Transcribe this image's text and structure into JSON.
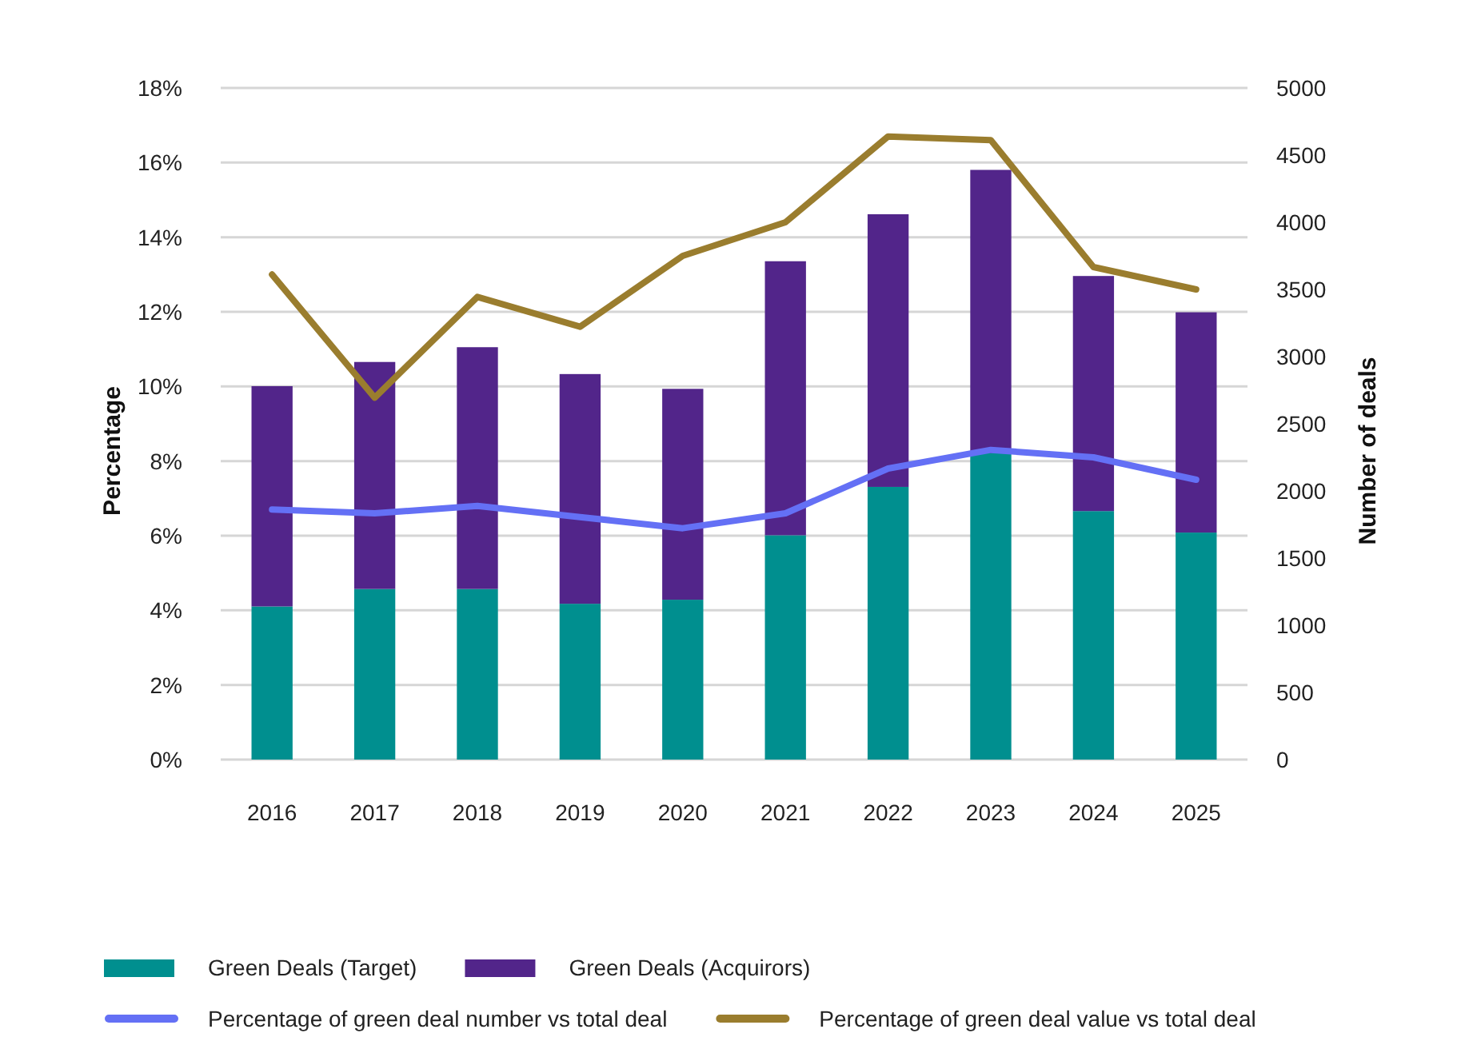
{
  "chart_data": {
    "type": "bar",
    "stacked": true,
    "categories": [
      "2016",
      "2017",
      "2018",
      "2019",
      "2020",
      "2021",
      "2022",
      "2023",
      "2024",
      "2025"
    ],
    "ylabel": "Percentage",
    "y2label": "Number of deals",
    "ylim": [
      0,
      18
    ],
    "yticks": [
      {
        "value": 0,
        "label": "0%"
      },
      {
        "value": 2,
        "label": "2%"
      },
      {
        "value": 4,
        "label": "4%"
      },
      {
        "value": 6,
        "label": "6%"
      },
      {
        "value": 8,
        "label": "8%"
      },
      {
        "value": 10,
        "label": "10%"
      },
      {
        "value": 12,
        "label": "12%"
      },
      {
        "value": 14,
        "label": "14%"
      },
      {
        "value": 16,
        "label": "16%"
      },
      {
        "value": 18,
        "label": "18%"
      }
    ],
    "y2lim": [
      0,
      5000
    ],
    "y2ticks": [
      0,
      500,
      1000,
      1500,
      2000,
      2500,
      3000,
      3500,
      4000,
      4500,
      5000
    ],
    "grid": "y",
    "legend": "bottom",
    "marker": "none",
    "line_style": "solid",
    "series": [
      {
        "name": "Green Deals (Target)",
        "axis": "y2",
        "color": "#008f8f",
        "values": [
          1140,
          1270,
          1270,
          1160,
          1190,
          1670,
          2030,
          2280,
          1850,
          1690
        ]
      },
      {
        "name": "Green Deals (Acquirors)",
        "axis": "y2",
        "color": "#52258a",
        "values": [
          1640,
          1690,
          1800,
          1710,
          1570,
          2040,
          2030,
          2110,
          1750,
          1640
        ]
      },
      {
        "name": "Percentage of green deal number vs total deal",
        "type": "line",
        "color": "#6470f5",
        "values": [
          6.7,
          6.6,
          6.8,
          6.5,
          6.2,
          6.6,
          7.8,
          8.3,
          8.1,
          7.5
        ]
      },
      {
        "name": "Percentage of green deal value vs total deal",
        "type": "line",
        "color": "#9a7d2e",
        "values": [
          13.0,
          9.7,
          12.4,
          11.6,
          13.5,
          14.4,
          16.7,
          16.6,
          13.2,
          12.6
        ]
      }
    ]
  }
}
